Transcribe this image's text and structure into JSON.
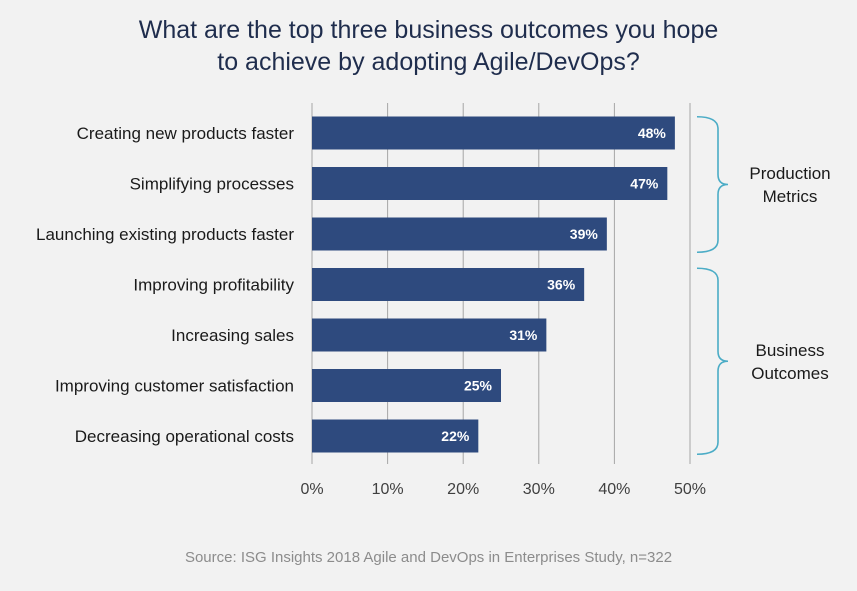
{
  "title_lines": [
    "What are the top three business outcomes you hope",
    "to achieve by adopting Agile/DevOps?"
  ],
  "source": "Source: ISG Insights 2018 Agile and DevOps in Enterprises Study, n=322",
  "colors": {
    "bar": "#2e4a7e",
    "bar_label": "#ffffff",
    "grid": "#a6a6a6",
    "bracket": "#4bacc6",
    "text": "#1a1a1a",
    "tick": "#404040"
  },
  "chart_data": {
    "type": "bar",
    "orientation": "horizontal",
    "title": "What are the top three business outcomes you hope to achieve by adopting Agile/DevOps?",
    "categories": [
      "Creating new products faster",
      "Simplifying processes",
      "Launching existing products faster",
      "Improving profitability",
      "Increasing sales",
      "Improving customer satisfaction",
      "Decreasing operational costs"
    ],
    "values": [
      48,
      47,
      39,
      36,
      31,
      25,
      22
    ],
    "value_labels": [
      "48%",
      "47%",
      "39%",
      "36%",
      "31%",
      "25%",
      "22%"
    ],
    "xlim": [
      0,
      50
    ],
    "x_ticks": [
      0,
      10,
      20,
      30,
      40,
      50
    ],
    "x_tick_labels": [
      "0%",
      "10%",
      "20%",
      "30%",
      "40%",
      "50%"
    ],
    "grid": "vertical",
    "groups": [
      {
        "label_lines": [
          "Production",
          "Metrics"
        ],
        "first": 0,
        "last": 2
      },
      {
        "label_lines": [
          "Business",
          "Outcomes"
        ],
        "first": 3,
        "last": 6
      }
    ]
  }
}
